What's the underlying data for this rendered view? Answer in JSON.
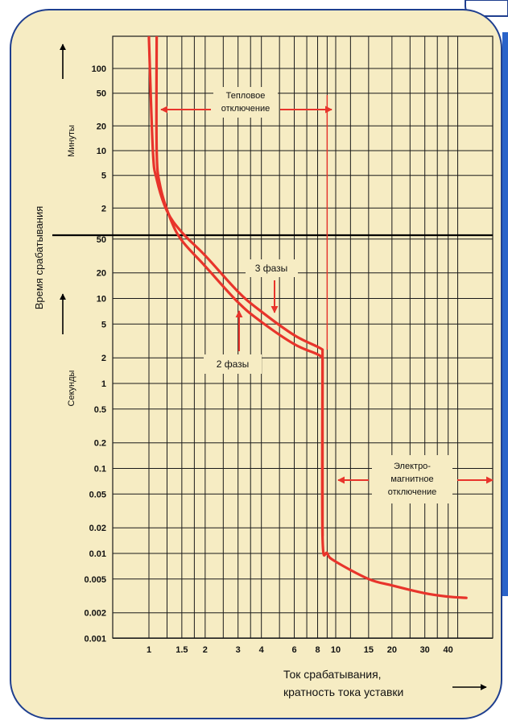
{
  "chart_data": {
    "type": "line",
    "x_scale": "log",
    "x_ticks": [
      {
        "value": 1,
        "label": "1"
      },
      {
        "value": 1.5,
        "label": "1.5"
      },
      {
        "value": 2,
        "label": "2"
      },
      {
        "value": 3,
        "label": "3"
      },
      {
        "value": 4,
        "label": "4"
      },
      {
        "value": 6,
        "label": "6"
      },
      {
        "value": 8,
        "label": "8"
      },
      {
        "value": 10,
        "label": "10"
      },
      {
        "value": 15,
        "label": "15"
      },
      {
        "value": 20,
        "label": "20"
      },
      {
        "value": 30,
        "label": "30"
      },
      {
        "value": 40,
        "label": "40"
      }
    ],
    "x_gridlines": [
      1,
      1.25,
      1.5,
      1.75,
      2,
      2.5,
      3,
      3.5,
      4,
      5,
      6,
      7,
      8,
      9,
      10,
      12,
      15,
      20,
      25,
      30,
      35,
      40,
      45
    ],
    "y_ticks_seconds": [
      {
        "value": 0.001,
        "label": "0.001"
      },
      {
        "value": 0.002,
        "label": "0.002"
      },
      {
        "value": 0.005,
        "label": "0.005"
      },
      {
        "value": 0.01,
        "label": "0.01"
      },
      {
        "value": 0.02,
        "label": "0.02"
      },
      {
        "value": 0.05,
        "label": "0.05"
      },
      {
        "value": 0.1,
        "label": "0.1"
      },
      {
        "value": 0.2,
        "label": "0.2"
      },
      {
        "value": 0.5,
        "label": "0.5"
      },
      {
        "value": 1,
        "label": "1"
      },
      {
        "value": 2,
        "label": "2"
      },
      {
        "value": 5,
        "label": "5"
      },
      {
        "value": 10,
        "label": "10"
      },
      {
        "value": 20,
        "label": "20"
      },
      {
        "value": 50,
        "label": "50"
      }
    ],
    "y_ticks_minutes": [
      {
        "value": 2,
        "label": "2"
      },
      {
        "value": 5,
        "label": "5"
      },
      {
        "value": 10,
        "label": "10"
      },
      {
        "value": 20,
        "label": "20"
      },
      {
        "value": 50,
        "label": "50"
      },
      {
        "value": 100,
        "label": "100"
      }
    ],
    "xlabel_line1": "Ток срабатывания,",
    "xlabel_line2": "кратность тока уставки",
    "ylabel": "Время срабатывания",
    "ylabel_minutes": "Минуты",
    "ylabel_seconds": "Секунды",
    "annotations": {
      "thermal_line1": "Тепловое",
      "thermal_line2": "отключение",
      "em_line1": "Электро-",
      "em_line2": "магнитное",
      "em_line3": "отключение",
      "three_phase": "3 фазы",
      "two_phase": "2 фазы"
    },
    "series": [
      {
        "name": "3 фазы",
        "y_unit": "seconds",
        "points": [
          [
            1,
            13800
          ],
          [
            1.05,
            600
          ],
          [
            1.1,
            270
          ],
          [
            1.25,
            110
          ],
          [
            1.5,
            60
          ],
          [
            2,
            32
          ],
          [
            3,
            12
          ],
          [
            4,
            7
          ],
          [
            6,
            3.7
          ],
          [
            8,
            2.7
          ],
          [
            8.5,
            2.5
          ]
        ]
      },
      {
        "name": "2 фазы",
        "y_unit": "seconds",
        "points": [
          [
            1.1,
            13800
          ],
          [
            1.1,
            600
          ],
          [
            1.15,
            220
          ],
          [
            1.3,
            90
          ],
          [
            1.5,
            48
          ],
          [
            2,
            24
          ],
          [
            3,
            9
          ],
          [
            4,
            5.3
          ],
          [
            6,
            2.9
          ],
          [
            8,
            2.2
          ],
          [
            8.5,
            2
          ]
        ]
      },
      {
        "name": "Электромагнитное отключение",
        "y_unit": "seconds",
        "points": [
          [
            8.5,
            2
          ],
          [
            8.5,
            0.016
          ],
          [
            9,
            0.01
          ],
          [
            10,
            0.008
          ],
          [
            15,
            0.005
          ],
          [
            20,
            0.0042
          ],
          [
            30,
            0.0034
          ],
          [
            40,
            0.0031
          ],
          [
            50,
            0.003
          ]
        ]
      }
    ],
    "colors": {
      "curve": "#e8342b",
      "panel": "#f6ecc3",
      "border": "#1f3f8f",
      "grid": "#1a1a1a",
      "accent": "#2a63c9"
    }
  }
}
